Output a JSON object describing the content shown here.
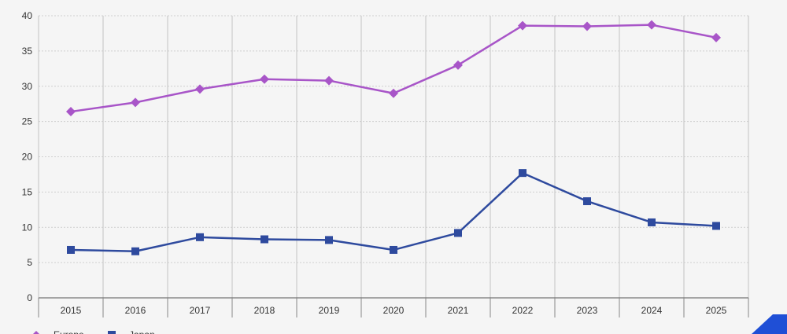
{
  "chart_data": {
    "type": "line",
    "categories": [
      "2015",
      "2016",
      "2017",
      "2018",
      "2019",
      "2020",
      "2021",
      "2022",
      "2023",
      "2024",
      "2025"
    ],
    "ylim": [
      0,
      40
    ],
    "yticks": [
      0,
      5,
      10,
      15,
      20,
      25,
      30,
      35,
      40
    ],
    "grid": true,
    "legend_position": "bottom-left",
    "series": [
      {
        "name": "Europe",
        "color": "#a855c8",
        "marker": "diamond",
        "values": [
          26.4,
          27.7,
          29.6,
          31.0,
          30.8,
          29.0,
          33.0,
          38.6,
          38.5,
          38.7,
          36.9
        ]
      },
      {
        "name": "Japan",
        "color": "#2e4a9e",
        "marker": "square",
        "values": [
          6.8,
          6.6,
          8.6,
          8.3,
          8.2,
          6.8,
          9.2,
          17.7,
          13.7,
          10.7,
          10.2
        ]
      }
    ]
  },
  "brand": {
    "accent_color": "#1f4fd6"
  }
}
